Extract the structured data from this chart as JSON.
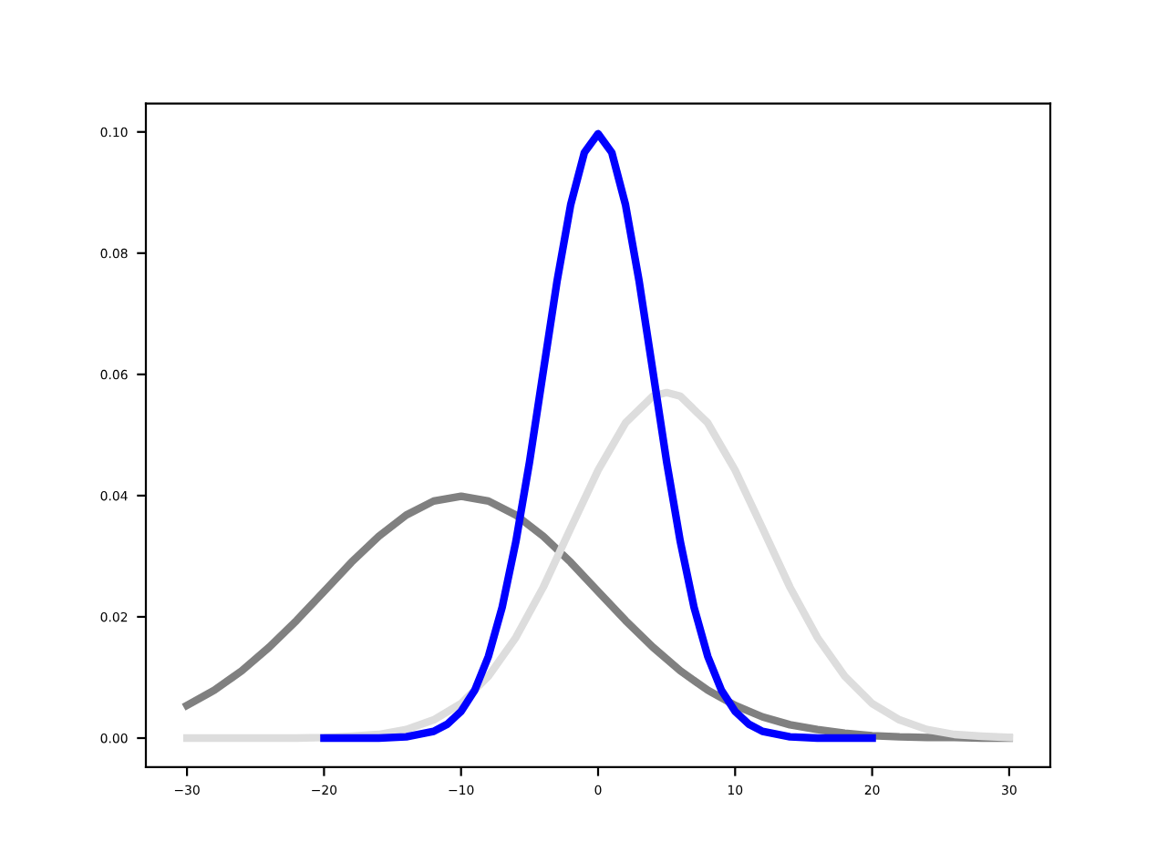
{
  "chart_data": {
    "type": "line",
    "xlim": [
      -33,
      33
    ],
    "ylim": [
      -0.0048,
      0.1047
    ],
    "xticks": [
      {
        "value": -30,
        "label": "−30"
      },
      {
        "value": -20,
        "label": "−20"
      },
      {
        "value": -10,
        "label": "−10"
      },
      0,
      10,
      20,
      30
    ],
    "yticks": [
      {
        "value": 0,
        "label": "0.00"
      },
      {
        "value": 0.02,
        "label": "0.02"
      },
      {
        "value": 0.04,
        "label": "0.04"
      },
      {
        "value": 0.06,
        "label": "0.06"
      },
      {
        "value": 0.08,
        "label": "0.08"
      },
      {
        "value": 0.1,
        "label": "0.10"
      }
    ],
    "grid": false,
    "legend": false,
    "marker": "none",
    "line_style": "solid",
    "series": [
      {
        "color": "#808080",
        "x": [
          -30,
          -28,
          -26,
          -24,
          -22,
          -20,
          -18,
          -16,
          -14,
          -12,
          -10,
          -8,
          -6,
          -4,
          -2,
          0,
          2,
          4,
          6,
          8,
          10,
          12,
          14,
          16,
          18,
          20,
          22,
          24,
          26,
          28,
          30
        ],
        "values": [
          0.0054,
          0.0079,
          0.0111,
          0.015,
          0.0194,
          0.0242,
          0.029,
          0.0333,
          0.0368,
          0.0391,
          0.0399,
          0.0391,
          0.0368,
          0.0333,
          0.029,
          0.0242,
          0.0194,
          0.015,
          0.0111,
          0.0079,
          0.0054,
          0.0035,
          0.0022,
          0.0014,
          0.0008,
          0.0004,
          0.0002,
          0.0001,
          0.0001,
          0,
          0
        ]
      },
      {
        "color": "#dddddd",
        "x": [
          -30,
          -28,
          -26,
          -24,
          -22,
          -20,
          -18,
          -16,
          -14,
          -12,
          -10,
          -8,
          -6,
          -4,
          -2,
          0,
          2,
          4,
          5,
          6,
          8,
          10,
          12,
          14,
          16,
          18,
          20,
          22,
          24,
          26,
          28,
          30
        ],
        "values": [
          0,
          0,
          0,
          0,
          0,
          0.0001,
          0.0003,
          0.0006,
          0.0014,
          0.003,
          0.0057,
          0.0102,
          0.0166,
          0.0249,
          0.0346,
          0.0442,
          0.052,
          0.0564,
          0.057,
          0.0564,
          0.052,
          0.0442,
          0.0346,
          0.0249,
          0.0166,
          0.0102,
          0.0057,
          0.003,
          0.0014,
          0.0006,
          0.0003,
          0.0001
        ]
      },
      {
        "color": "#0000ff",
        "x": [
          -20,
          -18,
          -16,
          -14,
          -12,
          -11,
          -10,
          -9,
          -8,
          -7,
          -6,
          -5,
          -4,
          -3,
          -2,
          -1,
          0,
          1,
          2,
          3,
          4,
          5,
          6,
          7,
          8,
          9,
          10,
          11,
          12,
          14,
          16,
          18,
          20
        ],
        "values": [
          0,
          0,
          0,
          0.0002,
          0.0011,
          0.0023,
          0.0044,
          0.0079,
          0.0135,
          0.0216,
          0.0324,
          0.0456,
          0.0605,
          0.0753,
          0.088,
          0.0966,
          0.0997,
          0.0966,
          0.088,
          0.0753,
          0.0605,
          0.0456,
          0.0324,
          0.0216,
          0.0135,
          0.0079,
          0.0044,
          0.0023,
          0.0011,
          0.0002,
          0,
          0,
          0
        ]
      }
    ]
  }
}
